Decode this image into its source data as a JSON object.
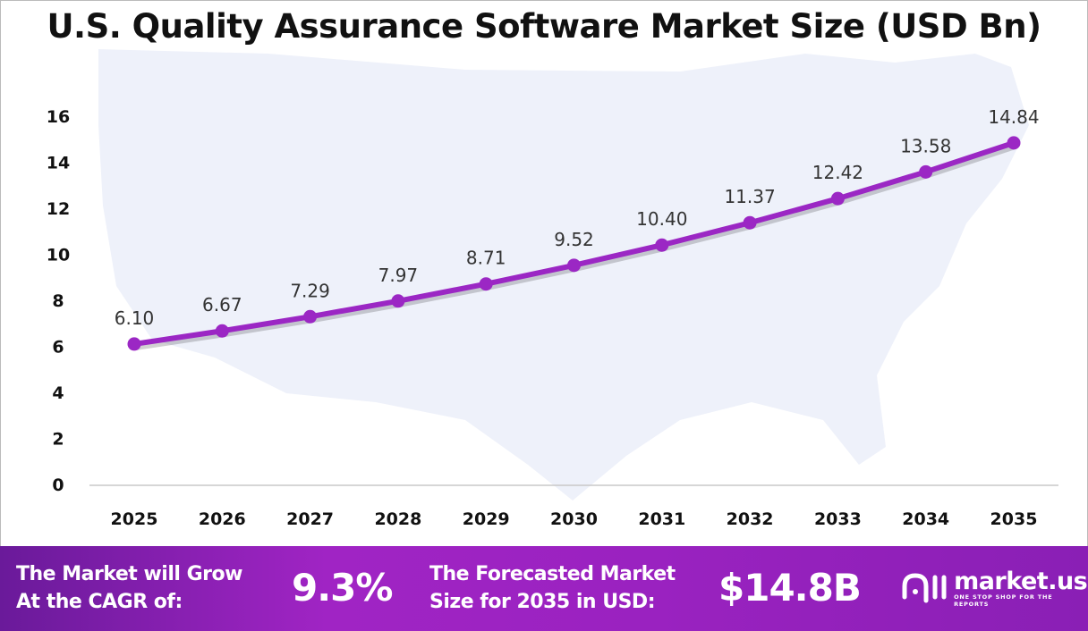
{
  "chart_data": {
    "type": "line",
    "title": "U.S. Quality Assurance Software Market Size (USD Bn)",
    "categories": [
      "2025",
      "2026",
      "2027",
      "2028",
      "2029",
      "2030",
      "2031",
      "2032",
      "2033",
      "2034",
      "2035"
    ],
    "values": [
      6.1,
      6.67,
      7.29,
      7.97,
      8.71,
      9.52,
      10.4,
      11.37,
      12.42,
      13.58,
      14.84
    ],
    "data_labels": [
      "6.10",
      "6.67",
      "7.29",
      "7.97",
      "8.71",
      "9.52",
      "10.40",
      "11.37",
      "12.42",
      "13.58",
      "14.84"
    ],
    "yticks": [
      "0",
      "2",
      "4",
      "6",
      "8",
      "10",
      "12",
      "14",
      "16"
    ],
    "ylim": [
      0,
      16
    ],
    "grid": false,
    "line_color": "#9b27c4"
  },
  "footer": {
    "cagr_label_1": "The Market will Grow",
    "cagr_label_2": "At the CAGR of:",
    "cagr_value": "9.3%",
    "forecast_label_1": "The Forecasted Market",
    "forecast_label_2": "Size for 2035 in USD:",
    "forecast_value": "$14.8B",
    "logo_name": "market.us",
    "logo_tagline": "ONE STOP SHOP FOR THE REPORTS"
  }
}
